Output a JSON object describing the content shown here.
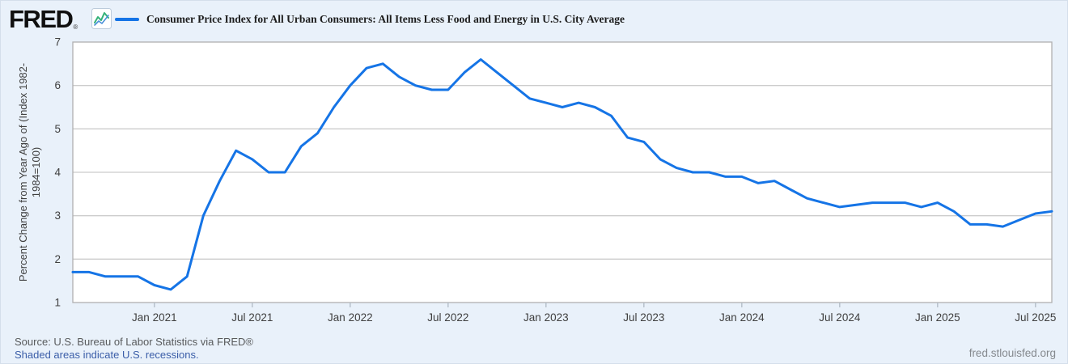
{
  "header": {
    "logo_text": "FRED",
    "logo_reg_mark": "®",
    "series_title": "Consumer Price Index for All Urban Consumers: All Items Less Food and Energy in U.S. City Average"
  },
  "footer": {
    "source": "Source: U.S. Bureau of Labor Statistics via FRED®",
    "recession_note": "Shaded areas indicate U.S. recessions.",
    "site": "fred.stlouisfed.org"
  },
  "colors": {
    "background": "#e9f1fa",
    "line": "#1574e6",
    "plot_border": "#b0b0b0",
    "gridline": "#cccccc",
    "tick_mark": "#b0bac4",
    "axis_text": "#404040",
    "link_blue": "#3a5da8",
    "source_gray": "#585a5c"
  },
  "chart": {
    "y_axis_label_line1": "Percent Change from Year Ago of (Index 1982-",
    "y_axis_label_line2": "1984=100)"
  },
  "chart_data": {
    "type": "line",
    "title": "Consumer Price Index for All Urban Consumers: All Items Less Food and Energy in U.S. City Average",
    "ylabel": "Percent Change from Year Ago of (Index 1982-1984=100)",
    "xlabel": "",
    "frequency": "monthly",
    "x_start": "2020-08",
    "x_end": "2025-08",
    "ylim": [
      1,
      7
    ],
    "grid": true,
    "legend_position": "top",
    "y_ticks": [
      1,
      2,
      3,
      4,
      5,
      6,
      7
    ],
    "x_ticks": [
      {
        "month_index": 5,
        "label": "Jan 2021"
      },
      {
        "month_index": 11,
        "label": "Jul 2021"
      },
      {
        "month_index": 17,
        "label": "Jan 2022"
      },
      {
        "month_index": 23,
        "label": "Jul 2022"
      },
      {
        "month_index": 29,
        "label": "Jan 2023"
      },
      {
        "month_index": 35,
        "label": "Jul 2023"
      },
      {
        "month_index": 41,
        "label": "Jan 2024"
      },
      {
        "month_index": 47,
        "label": "Jul 2024"
      },
      {
        "month_index": 53,
        "label": "Jan 2025"
      },
      {
        "month_index": 59,
        "label": "Jul 2025"
      }
    ],
    "series": [
      {
        "name": "Consumer Price Index for All Urban Consumers: All Items Less Food and Energy in U.S. City Average",
        "color": "#1574e6",
        "months": [
          "2020-08",
          "2020-09",
          "2020-10",
          "2020-11",
          "2020-12",
          "2021-01",
          "2021-02",
          "2021-03",
          "2021-04",
          "2021-05",
          "2021-06",
          "2021-07",
          "2021-08",
          "2021-09",
          "2021-10",
          "2021-11",
          "2021-12",
          "2022-01",
          "2022-02",
          "2022-03",
          "2022-04",
          "2022-05",
          "2022-06",
          "2022-07",
          "2022-08",
          "2022-09",
          "2022-10",
          "2022-11",
          "2022-12",
          "2023-01",
          "2023-02",
          "2023-03",
          "2023-04",
          "2023-05",
          "2023-06",
          "2023-07",
          "2023-08",
          "2023-09",
          "2023-10",
          "2023-11",
          "2023-12",
          "2024-01",
          "2024-02",
          "2024-03",
          "2024-04",
          "2024-05",
          "2024-06",
          "2024-07",
          "2024-08",
          "2024-09",
          "2024-10",
          "2024-11",
          "2024-12",
          "2025-01",
          "2025-02",
          "2025-03",
          "2025-04",
          "2025-05",
          "2025-06",
          "2025-07",
          "2025-08"
        ],
        "values": [
          1.7,
          1.7,
          1.6,
          1.6,
          1.6,
          1.4,
          1.3,
          1.6,
          3.0,
          3.8,
          4.5,
          4.3,
          4.0,
          4.0,
          4.6,
          4.9,
          5.5,
          6.0,
          6.4,
          6.5,
          6.2,
          6.0,
          5.9,
          5.9,
          6.3,
          6.6,
          6.3,
          6.0,
          5.7,
          5.6,
          5.5,
          5.6,
          5.5,
          5.3,
          4.8,
          4.7,
          4.3,
          4.1,
          4.0,
          4.0,
          3.9,
          3.9,
          3.75,
          3.8,
          3.6,
          3.4,
          3.3,
          3.2,
          3.25,
          3.3,
          3.3,
          3.3,
          3.2,
          3.3,
          3.1,
          2.8,
          2.8,
          2.75,
          2.9,
          3.05,
          3.1
        ]
      }
    ]
  }
}
